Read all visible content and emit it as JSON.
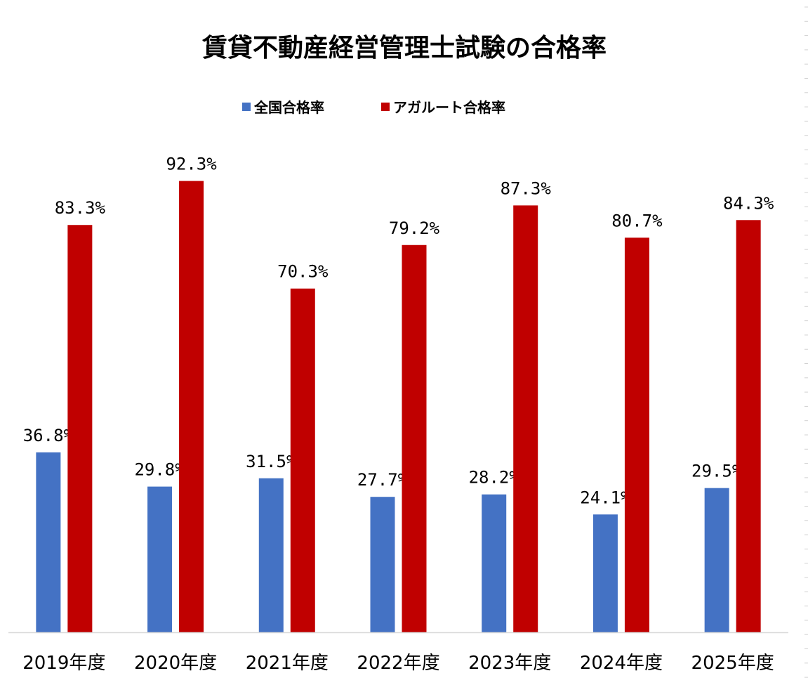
{
  "chart_data": {
    "type": "bar",
    "title": "賃貸不動産経営管理士試験の合格率",
    "xlabel": "",
    "ylabel": "",
    "ylim": [
      0,
      100
    ],
    "grid": false,
    "legend_position": "top",
    "categories": [
      "2019年度",
      "2020年度",
      "2021年度",
      "2022年度",
      "2023年度",
      "2024年度",
      "2025年度"
    ],
    "series": [
      {
        "name": "全国合格率",
        "color": "#4472C4",
        "values": [
          36.8,
          29.8,
          31.5,
          27.7,
          28.2,
          24.1,
          29.5
        ],
        "labels": [
          "36.8%",
          "29.8%",
          "31.5%",
          "27.7%",
          "28.2%",
          "24.1%",
          "29.5%"
        ]
      },
      {
        "name": "アガルート合格率",
        "color": "#C00000",
        "values": [
          83.3,
          92.3,
          70.3,
          79.2,
          87.3,
          80.7,
          84.3
        ],
        "labels": [
          "83.3%",
          "92.3%",
          "70.3%",
          "79.2%",
          "87.3%",
          "80.7%",
          "84.3%"
        ]
      }
    ]
  }
}
